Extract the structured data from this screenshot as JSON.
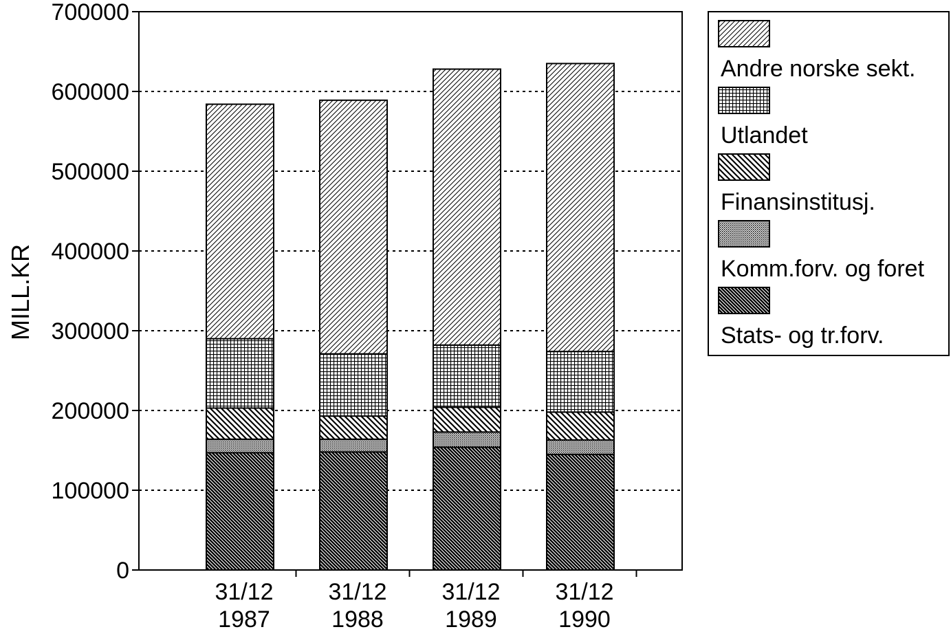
{
  "chart_data": {
    "type": "bar",
    "stacked": true,
    "title": "",
    "xlabel": "",
    "ylabel": "MILL.KR",
    "ylim": [
      0,
      700000
    ],
    "yticks": [
      0,
      100000,
      200000,
      300000,
      400000,
      500000,
      600000,
      700000
    ],
    "ytick_labels": [
      "0",
      "100000",
      "200000",
      "300000",
      "400000",
      "500000",
      "600000",
      "700000"
    ],
    "grid": "horizontal dotted",
    "legend_position": "right",
    "categories": [
      {
        "line1": "31/12",
        "line2": "1987"
      },
      {
        "line1": "31/12",
        "line2": "1988"
      },
      {
        "line1": "31/12",
        "line2": "1989"
      },
      {
        "line1": "31/12",
        "line2": "1990"
      }
    ],
    "series": [
      {
        "name": "Stats- og tr.forv.",
        "pattern": "dense-diagonal",
        "values": [
          147000,
          148000,
          154000,
          145000
        ]
      },
      {
        "name": "Komm.forv. og foret",
        "pattern": "fine-dots",
        "values": [
          17000,
          16000,
          19000,
          18000
        ]
      },
      {
        "name": "Finansinstitusj.",
        "pattern": "diagonal",
        "values": [
          39000,
          29000,
          31000,
          35000
        ]
      },
      {
        "name": "Utlandet",
        "pattern": "grid",
        "values": [
          87000,
          78000,
          78000,
          76000
        ]
      },
      {
        "name": "Andre norske sekt.",
        "pattern": "light-diagonal",
        "values": [
          294000,
          318000,
          346000,
          361000
        ]
      }
    ]
  }
}
